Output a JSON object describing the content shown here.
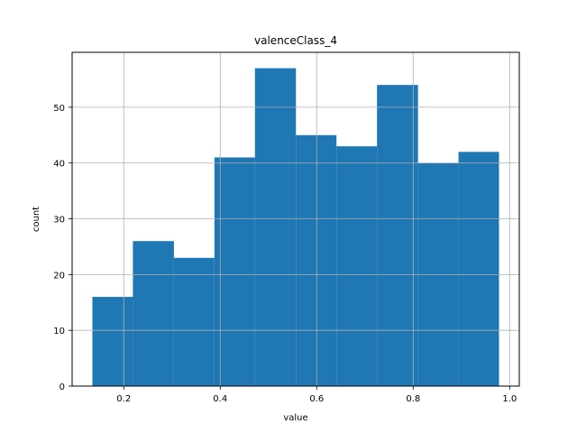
{
  "chart_data": {
    "type": "bar",
    "title": "valenceClass_4",
    "xlabel": "value",
    "ylabel": "count",
    "bin_edges": [
      0.135,
      0.219,
      0.304,
      0.388,
      0.472,
      0.557,
      0.641,
      0.725,
      0.81,
      0.894,
      0.978
    ],
    "values": [
      16,
      26,
      23,
      41,
      57,
      45,
      43,
      54,
      40,
      42
    ],
    "xlim": [
      0.093,
      1.02
    ],
    "ylim": [
      0,
      59.85
    ],
    "xticks": [
      0.2,
      0.4,
      0.6,
      0.8,
      1.0
    ],
    "xtick_labels": [
      "0.2",
      "0.4",
      "0.6",
      "0.8",
      "1.0"
    ],
    "yticks": [
      0,
      10,
      20,
      30,
      40,
      50
    ],
    "ytick_labels": [
      "0",
      "10",
      "20",
      "30",
      "40",
      "50"
    ],
    "grid": true,
    "bar_color": "#1f77b4",
    "grid_color": "#b0b0b0"
  }
}
